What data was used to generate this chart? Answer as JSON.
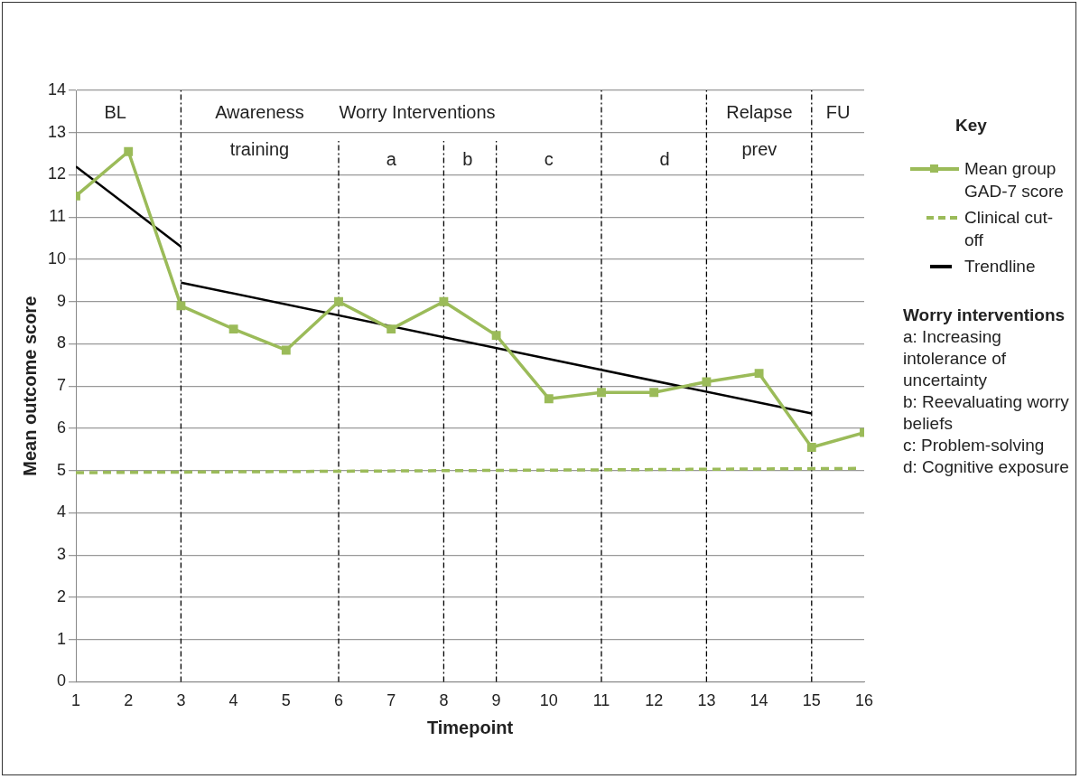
{
  "chart_data": {
    "type": "line",
    "xlabel": "Timepoint",
    "ylabel": "Mean outcome score",
    "legend_title": "Key",
    "xlim": [
      1,
      16
    ],
    "xticks": [
      1,
      2,
      3,
      4,
      5,
      6,
      7,
      8,
      9,
      10,
      11,
      12,
      13,
      14,
      15,
      16
    ],
    "ylim": [
      0,
      14
    ],
    "yticks": [
      0,
      1,
      2,
      3,
      4,
      5,
      6,
      7,
      8,
      9,
      10,
      11,
      12,
      13,
      14
    ],
    "grid": "y",
    "legend": "right",
    "series": [
      {
        "name": "Mean group GAD-7 score",
        "color": "#9bbb59",
        "marker": "square",
        "x": [
          1,
          2,
          3,
          4,
          5,
          6,
          7,
          8,
          9,
          10,
          11,
          12,
          13,
          14,
          15,
          16
        ],
        "values": [
          11.5,
          12.55,
          8.9,
          8.35,
          7.85,
          9.0,
          8.35,
          9.0,
          8.2,
          6.7,
          6.85,
          6.85,
          7.1,
          7.3,
          5.55,
          5.9
        ]
      },
      {
        "name": "Clinical cut-off",
        "color": "#9bbb59",
        "marker": "none",
        "line_style": "dashed",
        "x": [
          1,
          15.9
        ],
        "values": [
          4.95,
          5.05
        ]
      },
      {
        "name": "Trendline",
        "color": "#000000",
        "marker": "none",
        "x": [
          1,
          3
        ],
        "values": [
          12.2,
          10.3
        ]
      },
      {
        "color": "#000000",
        "marker": "none",
        "x": [
          3,
          15
        ],
        "values": [
          9.45,
          6.35
        ]
      }
    ],
    "ref_lines": [
      {
        "axis": "x",
        "value": 3,
        "color": "#000000",
        "line_style": "dashed"
      },
      {
        "axis": "x",
        "value": 6,
        "color": "#000000",
        "line_style": "dashed"
      },
      {
        "axis": "x",
        "value": 8,
        "color": "#000000",
        "line_style": "dashed"
      },
      {
        "axis": "x",
        "value": 9,
        "color": "#000000",
        "line_style": "dashed"
      },
      {
        "axis": "x",
        "value": 11,
        "color": "#000000",
        "line_style": "dashed"
      },
      {
        "axis": "x",
        "value": 13,
        "color": "#000000",
        "line_style": "dashed"
      },
      {
        "axis": "x",
        "value": 15,
        "color": "#000000",
        "line_style": "dashed"
      }
    ],
    "annotations": [
      "BL",
      "Awareness\ntraining",
      "Worry Interventions",
      "a",
      "b",
      "c",
      "d",
      "Relapse\nprev",
      "FU",
      "Worry interventions",
      "a: Increasing intolerance of uncertainty",
      "b: Reevaluating worry beliefs",
      "c: Problem-solving",
      "d: Cognitive exposure"
    ]
  }
}
